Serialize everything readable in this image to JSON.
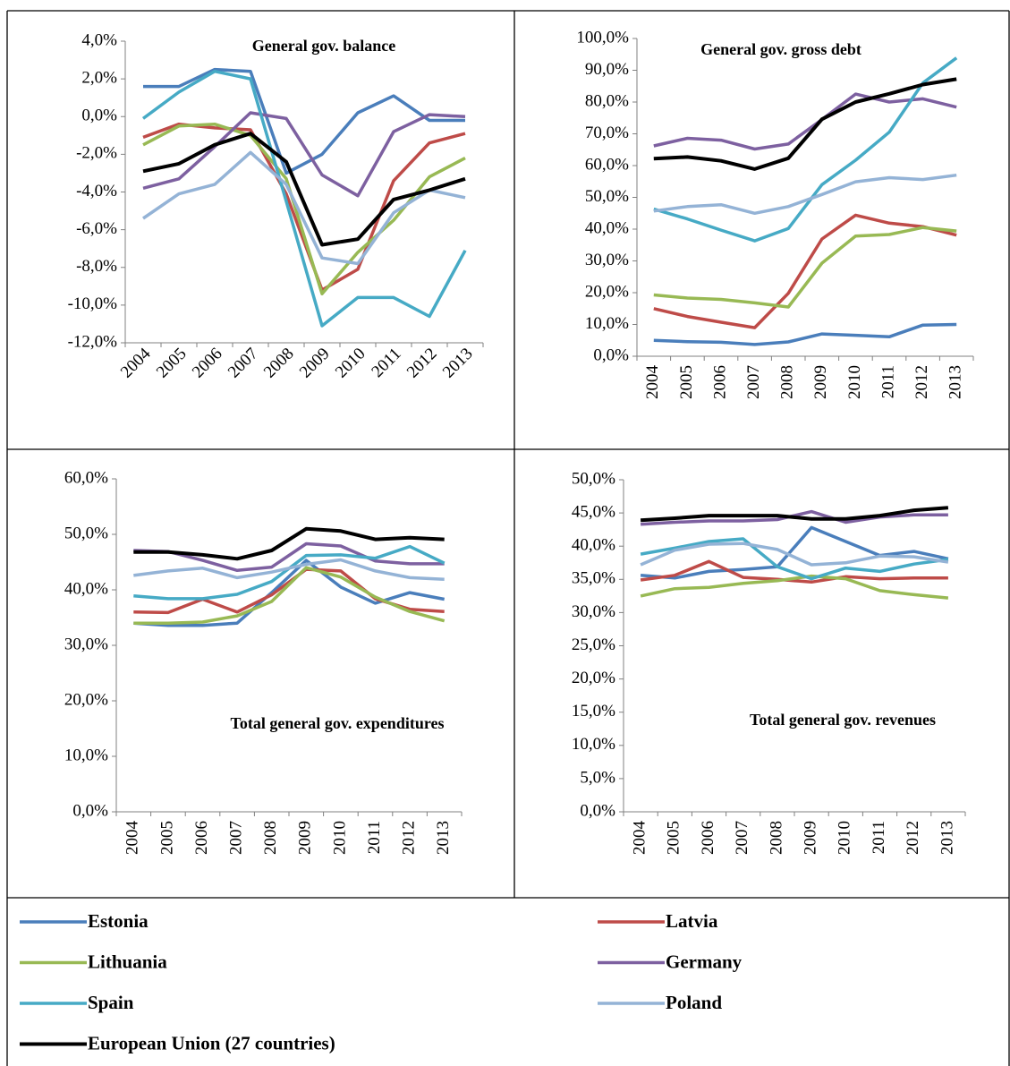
{
  "chart_data": [
    {
      "type": "line",
      "title": "General gov. balance",
      "categories": [
        "2004",
        "2005",
        "2006",
        "2007",
        "2008",
        "2009",
        "2010",
        "2011",
        "2012",
        "2013"
      ],
      "ylim": [
        -12,
        4
      ],
      "yticks": [
        {
          "value": -12,
          "label": "-12,0%"
        },
        {
          "value": -10,
          "label": "-10,0%"
        },
        {
          "value": -8,
          "label": "-8,0%"
        },
        {
          "value": -6,
          "label": "-6,0%"
        },
        {
          "value": -4,
          "label": "-4,0%"
        },
        {
          "value": -2,
          "label": "-2,0%"
        },
        {
          "value": 0,
          "label": "0,0%"
        },
        {
          "value": 2,
          "label": "2,0%"
        },
        {
          "value": 4,
          "label": "4,0%"
        }
      ],
      "series": [
        {
          "color": "#4a7ebb",
          "values": [
            1.6,
            1.6,
            2.5,
            2.4,
            -3.0,
            -2.0,
            0.2,
            1.1,
            -0.2,
            -0.2
          ]
        },
        {
          "color": "#be4b48",
          "values": [
            -1.1,
            -0.4,
            -0.6,
            -0.7,
            -4.1,
            -9.2,
            -8.1,
            -3.4,
            -1.4,
            -0.9
          ]
        },
        {
          "color": "#98b954",
          "values": [
            -1.5,
            -0.5,
            -0.4,
            -1.0,
            -3.3,
            -9.4,
            -7.2,
            -5.5,
            -3.2,
            -2.2
          ]
        },
        {
          "color": "#7d60a0",
          "values": [
            -3.8,
            -3.3,
            -1.6,
            0.2,
            -0.1,
            -3.1,
            -4.2,
            -0.8,
            0.1,
            0.0
          ]
        },
        {
          "color": "#46aac5",
          "values": [
            -0.1,
            1.3,
            2.4,
            2.0,
            -4.5,
            -11.1,
            -9.6,
            -9.6,
            -10.6,
            -7.1
          ]
        },
        {
          "color": "#94b3d6",
          "values": [
            -5.4,
            -4.1,
            -3.6,
            -1.9,
            -3.6,
            -7.5,
            -7.8,
            -5.1,
            -3.9,
            -4.3
          ]
        },
        {
          "color": "#000000",
          "values": [
            -2.9,
            -2.5,
            -1.5,
            -0.9,
            -2.4,
            -6.8,
            -6.5,
            -4.4,
            -3.9,
            -3.3
          ]
        }
      ]
    },
    {
      "type": "line",
      "title": "General gov. gross debt",
      "categories": [
        "2004",
        "2005",
        "2006",
        "2007",
        "2008",
        "2009",
        "2010",
        "2011",
        "2012",
        "2013"
      ],
      "ylim": [
        0,
        100
      ],
      "yticks": [
        {
          "value": 0,
          "label": "0,0%"
        },
        {
          "value": 10,
          "label": "10,0%"
        },
        {
          "value": 20,
          "label": "20,0%"
        },
        {
          "value": 30,
          "label": "30,0%"
        },
        {
          "value": 40,
          "label": "40,0%"
        },
        {
          "value": 50,
          "label": "50,0%"
        },
        {
          "value": 60,
          "label": "60,0%"
        },
        {
          "value": 70,
          "label": "70,0%"
        },
        {
          "value": 80,
          "label": "80,0%"
        },
        {
          "value": 90,
          "label": "90,0%"
        },
        {
          "value": 100,
          "label": "100,0%"
        }
      ],
      "series": [
        {
          "color": "#4a7ebb",
          "values": [
            5.0,
            4.6,
            4.4,
            3.7,
            4.5,
            7.0,
            6.6,
            6.1,
            9.8,
            10.0
          ]
        },
        {
          "color": "#be4b48",
          "values": [
            15.0,
            12.5,
            10.7,
            9.0,
            19.8,
            36.9,
            44.4,
            41.9,
            40.8,
            38.1
          ]
        },
        {
          "color": "#98b954",
          "values": [
            19.3,
            18.3,
            17.9,
            16.8,
            15.5,
            29.3,
            37.8,
            38.3,
            40.5,
            39.4
          ]
        },
        {
          "color": "#7d60a0",
          "values": [
            66.2,
            68.6,
            68.0,
            65.2,
            66.8,
            74.5,
            82.5,
            80.0,
            81.0,
            78.4
          ]
        },
        {
          "color": "#46aac5",
          "values": [
            46.3,
            43.2,
            39.7,
            36.3,
            40.2,
            54.0,
            61.7,
            70.5,
            86.0,
            93.9
          ]
        },
        {
          "color": "#94b3d6",
          "values": [
            45.7,
            47.1,
            47.7,
            45.0,
            47.1,
            50.9,
            54.9,
            56.2,
            55.6,
            57.0
          ]
        },
        {
          "color": "#000000",
          "values": [
            62.2,
            62.7,
            61.5,
            58.9,
            62.3,
            74.6,
            80.0,
            82.6,
            85.5,
            87.2
          ]
        }
      ]
    },
    {
      "type": "line",
      "title": "Total general gov. expenditures",
      "categories": [
        "2004",
        "2005",
        "2006",
        "2007",
        "2008",
        "2009",
        "2010",
        "2011",
        "2012",
        "2013"
      ],
      "ylim": [
        0,
        60
      ],
      "yticks": [
        {
          "value": 0,
          "label": "0,0%"
        },
        {
          "value": 10,
          "label": "10,0%"
        },
        {
          "value": 20,
          "label": "20,0%"
        },
        {
          "value": 30,
          "label": "30,0%"
        },
        {
          "value": 40,
          "label": "40,0%"
        },
        {
          "value": 50,
          "label": "50,0%"
        },
        {
          "value": 60,
          "label": "60,0%"
        }
      ],
      "series": [
        {
          "color": "#4a7ebb",
          "values": [
            34.0,
            33.6,
            33.6,
            34.0,
            39.5,
            45.3,
            40.5,
            37.6,
            39.5,
            38.3
          ]
        },
        {
          "color": "#be4b48",
          "values": [
            36.0,
            35.9,
            38.3,
            36.0,
            39.1,
            43.7,
            43.4,
            38.4,
            36.5,
            36.1
          ]
        },
        {
          "color": "#98b954",
          "values": [
            34.0,
            34.0,
            34.2,
            35.3,
            37.9,
            44.0,
            42.3,
            38.7,
            36.1,
            34.4
          ]
        },
        {
          "color": "#7d60a0",
          "values": [
            47.1,
            46.9,
            45.3,
            43.5,
            44.1,
            48.3,
            47.9,
            45.2,
            44.7,
            44.7
          ]
        },
        {
          "color": "#46aac5",
          "values": [
            38.9,
            38.4,
            38.4,
            39.2,
            41.5,
            46.2,
            46.3,
            45.7,
            47.8,
            44.8
          ]
        },
        {
          "color": "#94b3d6",
          "values": [
            42.6,
            43.4,
            43.9,
            42.2,
            43.2,
            44.6,
            45.4,
            43.4,
            42.2,
            41.9
          ]
        },
        {
          "color": "#000000",
          "values": [
            46.8,
            46.8,
            46.3,
            45.6,
            47.1,
            51.0,
            50.6,
            49.1,
            49.4,
            49.1
          ]
        }
      ]
    },
    {
      "type": "line",
      "title": "Total general gov. revenues",
      "categories": [
        "2004",
        "2005",
        "2006",
        "2007",
        "2008",
        "2009",
        "2010",
        "2011",
        "2012",
        "2013"
      ],
      "ylim": [
        0,
        50
      ],
      "yticks": [
        {
          "value": 0,
          "label": "0,0%"
        },
        {
          "value": 5,
          "label": "5,0%"
        },
        {
          "value": 10,
          "label": "10,0%"
        },
        {
          "value": 15,
          "label": "15,0%"
        },
        {
          "value": 20,
          "label": "20,0%"
        },
        {
          "value": 25,
          "label": "25,0%"
        },
        {
          "value": 30,
          "label": "30,0%"
        },
        {
          "value": 35,
          "label": "35,0%"
        },
        {
          "value": 40,
          "label": "40,0%"
        },
        {
          "value": 45,
          "label": "45,0%"
        },
        {
          "value": 50,
          "label": "50,0%"
        }
      ],
      "series": [
        {
          "color": "#4a7ebb",
          "values": [
            35.6,
            35.2,
            36.2,
            36.5,
            36.9,
            42.8,
            40.7,
            38.6,
            39.2,
            38.1
          ]
        },
        {
          "color": "#be4b48",
          "values": [
            34.9,
            35.6,
            37.7,
            35.3,
            35.0,
            34.6,
            35.4,
            35.1,
            35.2,
            35.2
          ]
        },
        {
          "color": "#98b954",
          "values": [
            32.5,
            33.6,
            33.8,
            34.4,
            34.8,
            35.5,
            35.1,
            33.3,
            32.7,
            32.2
          ]
        },
        {
          "color": "#7d60a0",
          "values": [
            43.3,
            43.6,
            43.8,
            43.8,
            44.0,
            45.2,
            43.6,
            44.4,
            44.7,
            44.7
          ]
        },
        {
          "color": "#46aac5",
          "values": [
            38.8,
            39.7,
            40.7,
            41.1,
            36.9,
            35.1,
            36.7,
            36.2,
            37.3,
            38.0
          ]
        },
        {
          "color": "#94b3d6",
          "values": [
            37.2,
            39.4,
            40.3,
            40.4,
            39.5,
            37.2,
            37.5,
            38.5,
            38.4,
            37.6
          ]
        },
        {
          "color": "#000000",
          "values": [
            43.9,
            44.2,
            44.6,
            44.6,
            44.6,
            44.1,
            44.1,
            44.6,
            45.4,
            45.8
          ]
        }
      ]
    }
  ],
  "legend": [
    {
      "name": "Estonia",
      "color": "#4a7ebb"
    },
    {
      "name": "Latvia",
      "color": "#be4b48"
    },
    {
      "name": "Lithuania",
      "color": "#98b954"
    },
    {
      "name": "Germany",
      "color": "#7d60a0"
    },
    {
      "name": "Spain",
      "color": "#46aac5"
    },
    {
      "name": "Poland",
      "color": "#94b3d6"
    },
    {
      "name": "European Union (27 countries)",
      "color": "#000000"
    }
  ]
}
